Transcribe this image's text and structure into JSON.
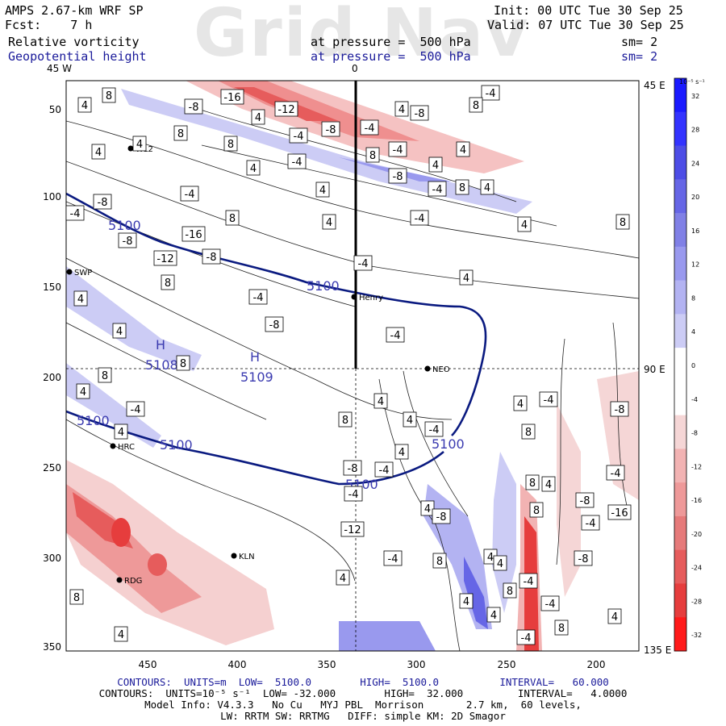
{
  "header": {
    "model": "AMPS 2.67-km WRF SP",
    "fcst_label": "Fcst:",
    "fcst_value": "7 h",
    "field1": "Relative vorticity",
    "field2": "Geopotential height",
    "init": "Init: 00 UTC Tue 30 Sep 25",
    "valid": "Valid: 07 UTC Tue 30 Sep 25",
    "pressure1": "at pressure =  500 hPa",
    "pressure2": "at pressure =  500 hPa",
    "sm1": "sm= 2",
    "sm2": "sm= 2",
    "watermark": "Grid Nav"
  },
  "map": {
    "top_labels": [
      "45 W",
      "0"
    ],
    "right_labels": [
      "45 E",
      "90 E",
      "135 E"
    ],
    "y_ticks": [
      "50",
      "100",
      "150",
      "200",
      "250",
      "300",
      "350"
    ],
    "x_ticks": [
      "450",
      "400",
      "350",
      "300",
      "250",
      "200"
    ],
    "stations": [
      {
        "name": "WL2"
      },
      {
        "name": "SWP"
      },
      {
        "name": "Henry"
      },
      {
        "name": "NEO"
      },
      {
        "name": "HRC"
      },
      {
        "name": "KLN"
      },
      {
        "name": "RDG"
      }
    ],
    "height_contour_labels": [
      "5100",
      "5100",
      "5100",
      "5100",
      "5100",
      "5100",
      "5109",
      "5108"
    ],
    "highs": [
      "H",
      "H"
    ],
    "vorticity_labels": [
      "4",
      "8",
      "-8",
      "-16",
      "-12",
      "-8",
      "-4",
      "-4",
      "8",
      "4",
      "4",
      "-8",
      "4",
      "-4",
      "8",
      "8",
      "4",
      "-4",
      "4",
      "8",
      "4",
      "4",
      "-4",
      "-8",
      "-4",
      "8",
      "4",
      "-4",
      "4",
      "-8",
      "-4",
      "8",
      "4",
      "-4"
    ]
  },
  "colorbar": {
    "unit": "10⁻⁵ s⁻¹",
    "ticks": [
      "32",
      "28",
      "24",
      "20",
      "16",
      "12",
      "8",
      "4",
      "0",
      "-4",
      "-8",
      "-12",
      "-16",
      "-20",
      "-24",
      "-28",
      "-32"
    ],
    "colors": [
      "#1a1aff",
      "#3333ff",
      "#4d4de6",
      "#6666e6",
      "#8080e6",
      "#9999ee",
      "#b3b3f2",
      "#ccccf5",
      "#ffffff",
      "#ffffff",
      "#f5d6d6",
      "#f2b3b3",
      "#ee9999",
      "#e67a7a",
      "#e65c5c",
      "#e63d3d",
      "#ff1a1a"
    ]
  },
  "footer": {
    "line1": "CONTOURS:  UNITS=m  LOW=  5100.0        HIGH=  5100.0          INTERVAL=   60.000",
    "line2": "CONTOURS:  UNITS=10⁻⁵ s⁻¹  LOW= -32.000        HIGH=  32.000         INTERVAL=   4.0000",
    "line3": "Model Info: V4.3.3   No Cu   MYJ PBL  Morrison       2.7 km,  60 levels,",
    "line4": "LW: RRTM SW: RRTMG   DIFF: simple KM: 2D Smagor"
  }
}
